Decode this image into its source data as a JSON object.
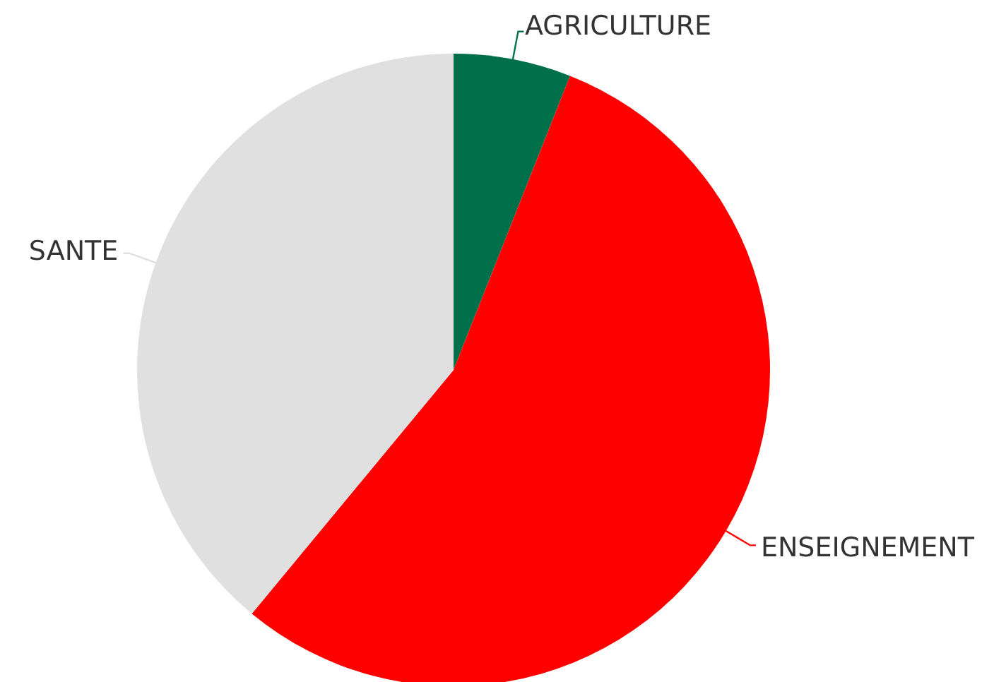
{
  "chart_data": {
    "type": "pie",
    "categories": [
      "AGRICULTURE",
      "ENSEIGNEMENT",
      "SANTE"
    ],
    "values": [
      6,
      55,
      39
    ],
    "colors": [
      "#00704a",
      "#ff0000",
      "#e0e0e0"
    ]
  }
}
